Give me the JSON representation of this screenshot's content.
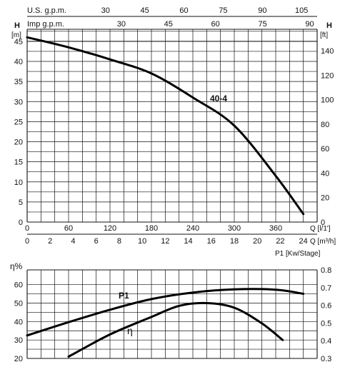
{
  "chart_data": [
    {
      "type": "line",
      "title": "",
      "top_axes": [
        {
          "label": "U.S. g.p.m.",
          "ticks": [
            "30",
            "45",
            "60",
            "75",
            "90",
            "105"
          ]
        },
        {
          "label": "Imp g.p.m.",
          "ticks": [
            "30",
            "45",
            "60",
            "75",
            "90"
          ]
        }
      ],
      "x_axes": [
        {
          "label": "Q [l/1']",
          "ticks": [
            "0",
            "60",
            "120",
            "180",
            "240",
            "300",
            "360"
          ],
          "xlim": [
            0,
            420
          ]
        },
        {
          "label": "Q [m³/h]",
          "ticks": [
            "0",
            "2",
            "4",
            "6",
            "8",
            "10",
            "12",
            "14",
            "16",
            "18",
            "20",
            "22",
            "24"
          ]
        }
      ],
      "y_left": {
        "label": "H",
        "unit": "[m]",
        "ticks": [
          "0",
          "5",
          "10",
          "15",
          "20",
          "25",
          "30",
          "35",
          "40",
          "45"
        ],
        "ylim": [
          0,
          48
        ]
      },
      "y_right": {
        "label": "H",
        "unit": "[ft]",
        "ticks": [
          "0",
          "20",
          "40",
          "60",
          "80",
          "100",
          "120",
          "140"
        ]
      },
      "grid": true,
      "series": [
        {
          "name": "40-4",
          "x": [
            0,
            60,
            120,
            180,
            240,
            300,
            360,
            400
          ],
          "y": [
            46,
            43.5,
            40.5,
            37,
            31,
            24,
            11.5,
            2
          ]
        }
      ]
    },
    {
      "type": "line",
      "title": "",
      "y_left": {
        "label": "η%",
        "ticks": [
          "20",
          "30",
          "40",
          "50",
          "60"
        ],
        "ylim": [
          20,
          68
        ]
      },
      "y_right": {
        "label": "P1 [Kw/Stage]",
        "ticks": [
          "0.3",
          "0.4",
          "0.5",
          "0.6",
          "0.7",
          "0.8"
        ],
        "ylim": [
          0.3,
          0.8
        ]
      },
      "series": [
        {
          "name": "P1",
          "axis": "right",
          "x": [
            0,
            60,
            120,
            180,
            240,
            300,
            360,
            400
          ],
          "y": [
            0.43,
            0.505,
            0.575,
            0.635,
            0.672,
            0.69,
            0.688,
            0.665
          ]
        },
        {
          "name": "η",
          "axis": "left",
          "x": [
            60,
            120,
            180,
            220,
            260,
            300,
            340,
            370
          ],
          "y": [
            21,
            33,
            42.5,
            48.5,
            50,
            47.5,
            39,
            30
          ]
        }
      ]
    }
  ],
  "labels": {
    "curve_40_4": "40-4",
    "curve_p1": "P1",
    "curve_eta": "η"
  }
}
